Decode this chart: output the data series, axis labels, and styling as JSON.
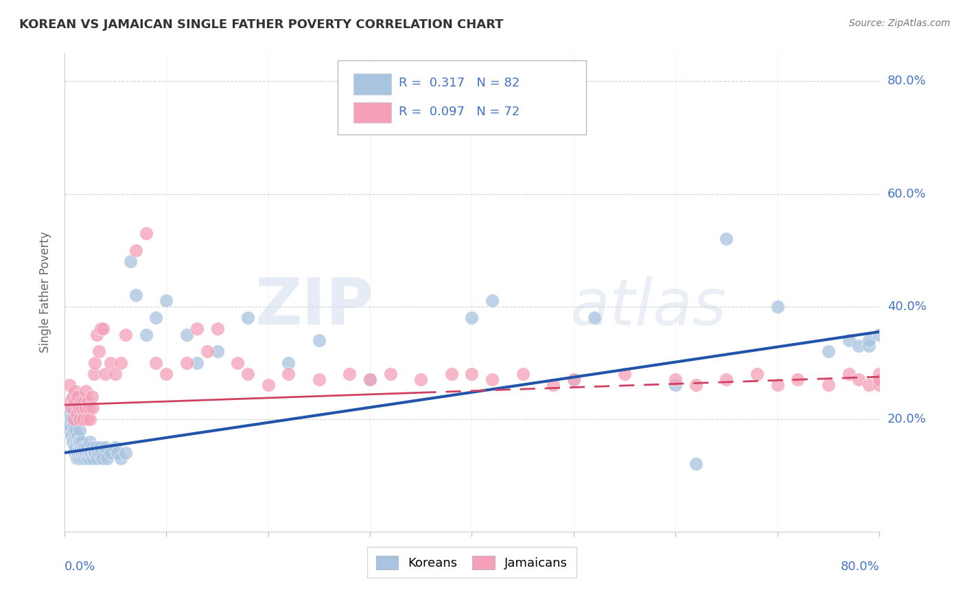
{
  "title": "KOREAN VS JAMAICAN SINGLE FATHER POVERTY CORRELATION CHART",
  "source": "Source: ZipAtlas.com",
  "ylabel": "Single Father Poverty",
  "korean_R": "0.317",
  "korean_N": "82",
  "jamaican_R": "0.097",
  "jamaican_N": "72",
  "korean_color": "#a8c4e0",
  "jamaican_color": "#f4a0b8",
  "korean_line_color": "#2255aa",
  "jamaican_line_color": "#d04060",
  "label_color": "#4472c4",
  "xlim": [
    0.0,
    0.8
  ],
  "ylim": [
    0.0,
    0.85
  ],
  "korean_line_x0": 0.0,
  "korean_line_y0": 0.14,
  "korean_line_x1": 0.8,
  "korean_line_y1": 0.355,
  "jamaican_line_x0": 0.0,
  "jamaican_line_y0": 0.225,
  "jamaican_line_x1": 0.8,
  "jamaican_line_y1": 0.275,
  "korean_scatter_x": [
    0.005,
    0.005,
    0.005,
    0.007,
    0.007,
    0.007,
    0.008,
    0.009,
    0.01,
    0.01,
    0.01,
    0.01,
    0.01,
    0.012,
    0.012,
    0.013,
    0.013,
    0.014,
    0.014,
    0.015,
    0.015,
    0.015,
    0.016,
    0.016,
    0.017,
    0.017,
    0.018,
    0.018,
    0.019,
    0.02,
    0.02,
    0.021,
    0.022,
    0.022,
    0.023,
    0.024,
    0.025,
    0.025,
    0.026,
    0.027,
    0.028,
    0.029,
    0.03,
    0.031,
    0.032,
    0.033,
    0.035,
    0.036,
    0.037,
    0.04,
    0.042,
    0.045,
    0.05,
    0.052,
    0.055,
    0.06,
    0.065,
    0.07,
    0.08,
    0.09,
    0.1,
    0.12,
    0.13,
    0.15,
    0.18,
    0.22,
    0.25,
    0.3,
    0.4,
    0.42,
    0.5,
    0.52,
    0.6,
    0.62,
    0.65,
    0.7,
    0.75,
    0.77,
    0.78,
    0.79,
    0.79,
    0.8
  ],
  "korean_scatter_y": [
    0.18,
    0.19,
    0.21,
    0.17,
    0.2,
    0.22,
    0.16,
    0.19,
    0.14,
    0.15,
    0.17,
    0.18,
    0.2,
    0.13,
    0.16,
    0.14,
    0.17,
    0.13,
    0.16,
    0.14,
    0.16,
    0.18,
    0.13,
    0.15,
    0.14,
    0.16,
    0.13,
    0.15,
    0.14,
    0.13,
    0.15,
    0.14,
    0.13,
    0.15,
    0.14,
    0.13,
    0.14,
    0.16,
    0.14,
    0.15,
    0.13,
    0.14,
    0.14,
    0.15,
    0.13,
    0.14,
    0.15,
    0.14,
    0.13,
    0.15,
    0.13,
    0.14,
    0.15,
    0.14,
    0.13,
    0.14,
    0.48,
    0.42,
    0.35,
    0.38,
    0.41,
    0.35,
    0.3,
    0.32,
    0.38,
    0.3,
    0.34,
    0.27,
    0.38,
    0.41,
    0.27,
    0.38,
    0.26,
    0.12,
    0.52,
    0.4,
    0.32,
    0.34,
    0.33,
    0.33,
    0.34,
    0.35
  ],
  "jamaican_scatter_x": [
    0.005,
    0.005,
    0.007,
    0.008,
    0.009,
    0.01,
    0.01,
    0.012,
    0.013,
    0.014,
    0.015,
    0.016,
    0.017,
    0.018,
    0.019,
    0.02,
    0.021,
    0.022,
    0.023,
    0.024,
    0.025,
    0.027,
    0.028,
    0.029,
    0.03,
    0.032,
    0.034,
    0.036,
    0.038,
    0.04,
    0.045,
    0.05,
    0.055,
    0.06,
    0.07,
    0.08,
    0.09,
    0.1,
    0.12,
    0.13,
    0.14,
    0.15,
    0.17,
    0.18,
    0.2,
    0.22,
    0.25,
    0.28,
    0.3,
    0.32,
    0.35,
    0.38,
    0.4,
    0.42,
    0.45,
    0.48,
    0.5,
    0.55,
    0.6,
    0.62,
    0.65,
    0.68,
    0.7,
    0.72,
    0.75,
    0.77,
    0.78,
    0.79,
    0.8,
    0.8,
    0.8,
    0.8
  ],
  "jamaican_scatter_y": [
    0.23,
    0.26,
    0.22,
    0.24,
    0.2,
    0.23,
    0.25,
    0.21,
    0.24,
    0.22,
    0.2,
    0.23,
    0.22,
    0.2,
    0.23,
    0.22,
    0.25,
    0.2,
    0.23,
    0.22,
    0.2,
    0.24,
    0.22,
    0.28,
    0.3,
    0.35,
    0.32,
    0.36,
    0.36,
    0.28,
    0.3,
    0.28,
    0.3,
    0.35,
    0.5,
    0.53,
    0.3,
    0.28,
    0.3,
    0.36,
    0.32,
    0.36,
    0.3,
    0.28,
    0.26,
    0.28,
    0.27,
    0.28,
    0.27,
    0.28,
    0.27,
    0.28,
    0.28,
    0.27,
    0.28,
    0.26,
    0.27,
    0.28,
    0.27,
    0.26,
    0.27,
    0.28,
    0.26,
    0.27,
    0.26,
    0.28,
    0.27,
    0.26,
    0.28,
    0.27,
    0.26,
    0.27
  ]
}
